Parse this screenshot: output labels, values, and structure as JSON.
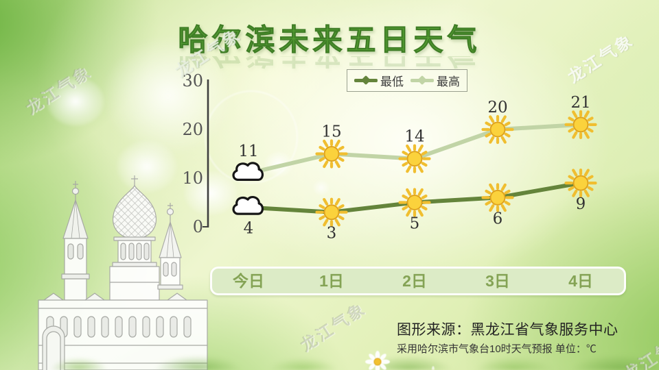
{
  "title": "哈尔滨未来五日天气",
  "watermark": "龙江气象",
  "legend": {
    "low_label": "最低",
    "high_label": "最高"
  },
  "chart_data": {
    "type": "line",
    "title": "哈尔滨未来五日天气",
    "categories": [
      "今日",
      "1日",
      "2日",
      "3日",
      "4日"
    ],
    "series": [
      {
        "key": "low",
        "name": "最低",
        "values": [
          4,
          3,
          5,
          6,
          9
        ],
        "icons": [
          "cloud",
          "sun",
          "sun",
          "sun",
          "sun"
        ]
      },
      {
        "key": "high",
        "name": "最高",
        "values": [
          11,
          15,
          14,
          20,
          21
        ],
        "icons": [
          "cloud",
          "sun",
          "sun",
          "sun",
          "sun"
        ]
      }
    ],
    "ylim": [
      0,
      30
    ],
    "yticks": [
      0,
      10,
      20,
      30
    ],
    "unit": "℃",
    "grid": false,
    "legend_position": "top"
  },
  "source": {
    "line1": "图形来源：黑龙江省气象服务中心",
    "line2": "采用哈尔滨市气象台10时天气预报 单位：℃"
  },
  "colors": {
    "low_line": "#64843b",
    "high_line": "#c1d4a6",
    "sun_fill": "#fbd23c",
    "sun_stroke": "#dfa31f",
    "ray": "#f0be30",
    "cloud_fill": "#ffffff",
    "cloud_stroke": "#161616",
    "axis": "#3f3f3f",
    "value_label": "#333333",
    "xbar_bg": "#dcebc6",
    "xbar_text": "#84a355",
    "title_green": "#58a434"
  }
}
